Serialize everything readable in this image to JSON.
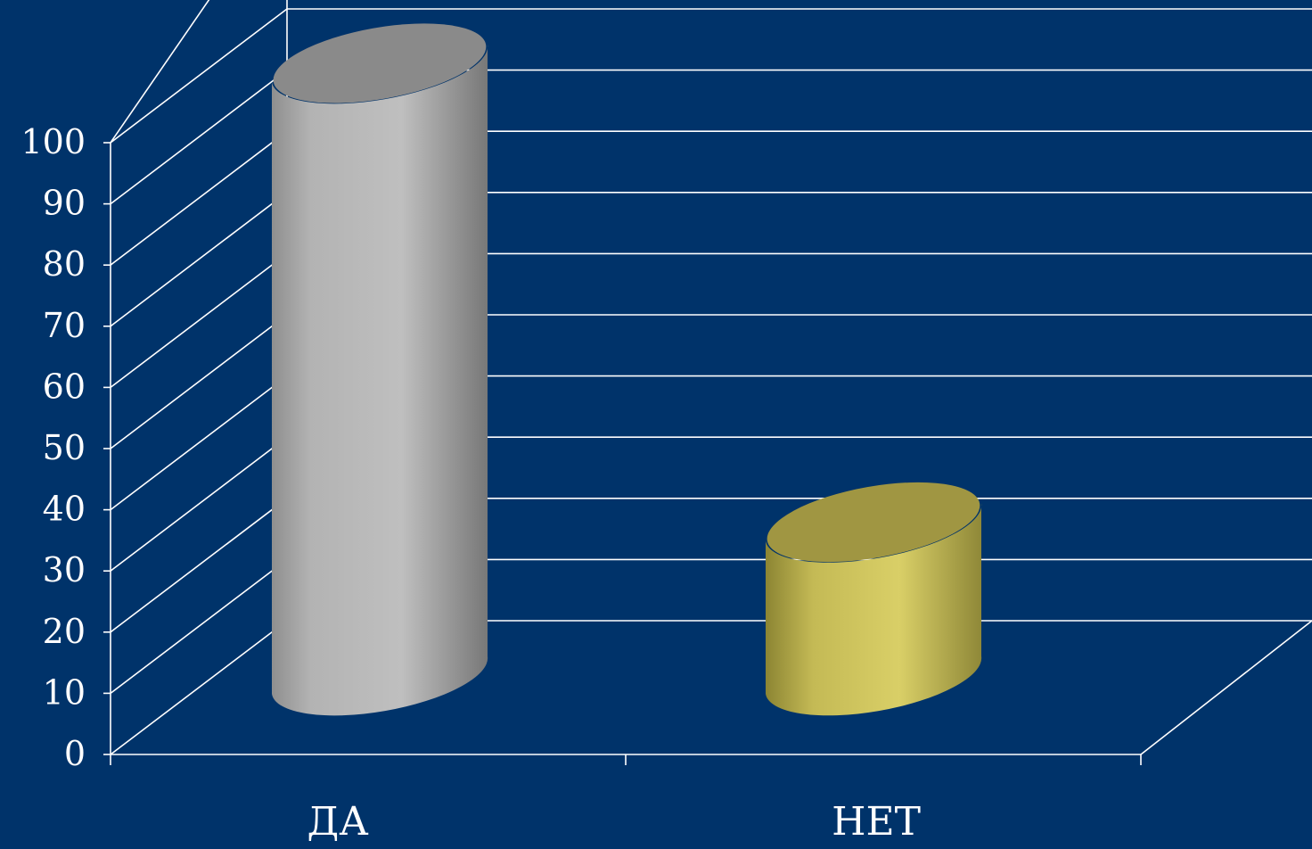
{
  "chart_data": {
    "type": "bar",
    "style": "3d-cylinder",
    "categories": [
      "ДА",
      "НЕТ"
    ],
    "series": [
      {
        "values": [
          100,
          25
        ]
      }
    ],
    "bar_colors": [
      "#b9b9b9",
      "#d6cb62"
    ],
    "ylim": [
      0,
      100
    ],
    "yticks": [
      0,
      10,
      20,
      30,
      40,
      50,
      60,
      70,
      80,
      90,
      100
    ],
    "ytick_labels": [
      "0",
      "10",
      "20",
      "30",
      "40",
      "50",
      "60",
      "70",
      "80",
      "90",
      "100"
    ],
    "grid": true,
    "legend": "none",
    "title": "",
    "xlabel": "",
    "ylabel": ""
  },
  "colors": {
    "background": "#00336a",
    "axis": "#ffffff",
    "grid": "#ffffff"
  }
}
